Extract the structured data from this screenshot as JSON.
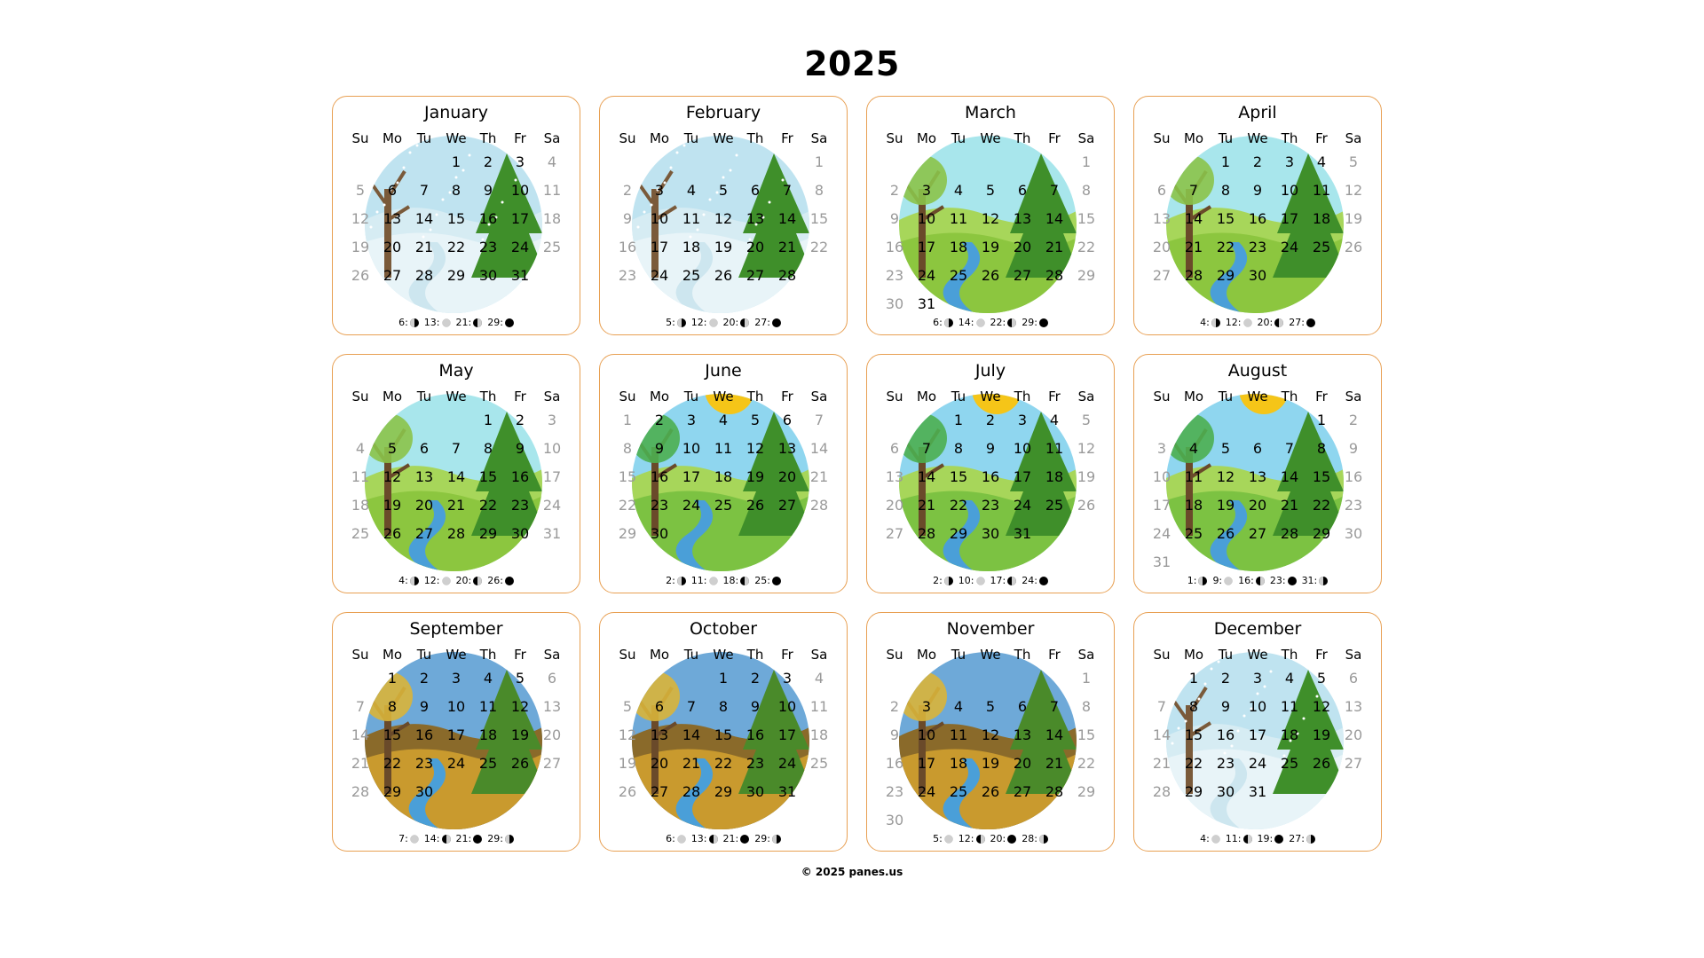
{
  "title": "2025",
  "weekdays": [
    "Su",
    "Mo",
    "Tu",
    "We",
    "Th",
    "Fr",
    "Sa"
  ],
  "footer": "© 2025 panes.us",
  "months": [
    {
      "name": "January",
      "offset": 3,
      "days": 31,
      "season": "winter",
      "moons": [
        {
          "day": "6:",
          "phase": "first"
        },
        {
          "day": "13:",
          "phase": "full"
        },
        {
          "day": "21:",
          "phase": "last"
        },
        {
          "day": "29:",
          "phase": "new"
        }
      ]
    },
    {
      "name": "February",
      "offset": 6,
      "days": 28,
      "season": "winter",
      "moons": [
        {
          "day": "5:",
          "phase": "first"
        },
        {
          "day": "12:",
          "phase": "full"
        },
        {
          "day": "20:",
          "phase": "last"
        },
        {
          "day": "27:",
          "phase": "new"
        }
      ]
    },
    {
      "name": "March",
      "offset": 6,
      "days": 31,
      "season": "spring",
      "moons": [
        {
          "day": "6:",
          "phase": "first"
        },
        {
          "day": "14:",
          "phase": "full"
        },
        {
          "day": "22:",
          "phase": "last"
        },
        {
          "day": "29:",
          "phase": "new"
        }
      ]
    },
    {
      "name": "April",
      "offset": 2,
      "days": 30,
      "season": "spring",
      "moons": [
        {
          "day": "4:",
          "phase": "first"
        },
        {
          "day": "12:",
          "phase": "full"
        },
        {
          "day": "20:",
          "phase": "last"
        },
        {
          "day": "27:",
          "phase": "new"
        }
      ]
    },
    {
      "name": "May",
      "offset": 4,
      "days": 31,
      "season": "spring",
      "moons": [
        {
          "day": "4:",
          "phase": "first"
        },
        {
          "day": "12:",
          "phase": "full"
        },
        {
          "day": "20:",
          "phase": "last"
        },
        {
          "day": "26:",
          "phase": "new"
        }
      ]
    },
    {
      "name": "June",
      "offset": 0,
      "days": 30,
      "season": "summer",
      "moons": [
        {
          "day": "2:",
          "phase": "first"
        },
        {
          "day": "11:",
          "phase": "full"
        },
        {
          "day": "18:",
          "phase": "last"
        },
        {
          "day": "25:",
          "phase": "new"
        }
      ]
    },
    {
      "name": "July",
      "offset": 2,
      "days": 31,
      "season": "summer",
      "moons": [
        {
          "day": "2:",
          "phase": "first"
        },
        {
          "day": "10:",
          "phase": "full"
        },
        {
          "day": "17:",
          "phase": "last"
        },
        {
          "day": "24:",
          "phase": "new"
        }
      ]
    },
    {
      "name": "August",
      "offset": 5,
      "days": 31,
      "season": "summer",
      "moons": [
        {
          "day": "1:",
          "phase": "first"
        },
        {
          "day": "9:",
          "phase": "full"
        },
        {
          "day": "16:",
          "phase": "last"
        },
        {
          "day": "23:",
          "phase": "new"
        },
        {
          "day": "31:",
          "phase": "first"
        }
      ]
    },
    {
      "name": "September",
      "offset": 1,
      "days": 30,
      "season": "autumn",
      "moons": [
        {
          "day": "7:",
          "phase": "full"
        },
        {
          "day": "14:",
          "phase": "last"
        },
        {
          "day": "21:",
          "phase": "new"
        },
        {
          "day": "29:",
          "phase": "first"
        }
      ]
    },
    {
      "name": "October",
      "offset": 3,
      "days": 31,
      "season": "autumn",
      "moons": [
        {
          "day": "6:",
          "phase": "full"
        },
        {
          "day": "13:",
          "phase": "last"
        },
        {
          "day": "21:",
          "phase": "new"
        },
        {
          "day": "29:",
          "phase": "first"
        }
      ]
    },
    {
      "name": "November",
      "offset": 6,
      "days": 30,
      "season": "autumn",
      "moons": [
        {
          "day": "5:",
          "phase": "full"
        },
        {
          "day": "12:",
          "phase": "last"
        },
        {
          "day": "20:",
          "phase": "new"
        },
        {
          "day": "28:",
          "phase": "first"
        }
      ]
    },
    {
      "name": "December",
      "offset": 1,
      "days": 31,
      "season": "winter",
      "moons": [
        {
          "day": "4:",
          "phase": "full"
        },
        {
          "day": "11:",
          "phase": "last"
        },
        {
          "day": "19:",
          "phase": "new"
        },
        {
          "day": "27:",
          "phase": "first"
        }
      ]
    }
  ],
  "seasons": {
    "winter": {
      "sky": "#bfe3f0",
      "ground": "#e8f4f8",
      "tree": "#7a5a3a",
      "pine": "#3f8f2a"
    },
    "spring": {
      "sky": "#a8e6ec",
      "ground": "#8cc63f",
      "tree": "#6a4a2a",
      "pine": "#3f8f2a"
    },
    "summer": {
      "sky": "#8fd6ef",
      "ground": "#7cc242",
      "tree": "#6a4a2a",
      "pine": "#3f8f2a"
    },
    "autumn": {
      "sky": "#6ea9d8",
      "ground": "#c99a2e",
      "tree": "#6a4a2a",
      "pine": "#4a8a2a"
    }
  }
}
